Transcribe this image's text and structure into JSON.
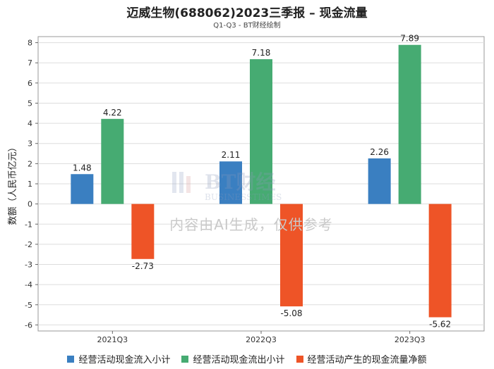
{
  "title": "迈威生物(688062)2023三季报 – 现金流量",
  "subtitle": "Q1-Q3 - BT财经绘制",
  "watermark": {
    "logo_text": "BT财经",
    "logo_subtext": "BUSINESSTIMES",
    "text": "内容由AI生成，仅供参考"
  },
  "chart_data": {
    "type": "bar",
    "title": "迈威生物(688062)2023三季报 – 现金流量",
    "subtitle": "Q1-Q3 - BT财经绘制",
    "xlabel": "",
    "ylabel": "数额（人民币亿元）",
    "categories": [
      "2021Q3",
      "2022Q3",
      "2023Q3"
    ],
    "series": [
      {
        "name": "经营活动现金流入小计",
        "color": "#3a7fc1",
        "values": [
          1.48,
          2.11,
          2.26
        ]
      },
      {
        "name": "经营活动现金流出小计",
        "color": "#46ab72",
        "values": [
          4.22,
          7.18,
          7.89
        ]
      },
      {
        "name": "经营活动产生的现金流量净额",
        "color": "#ee5427",
        "values": [
          -2.73,
          -5.08,
          -5.62
        ]
      }
    ],
    "ylim": [
      -6.3,
      8.3
    ],
    "yticks": [
      -6,
      -5,
      -4,
      -3,
      -2,
      -1,
      0,
      1,
      2,
      3,
      4,
      5,
      6,
      7,
      8
    ],
    "grid": true,
    "legend": "bottom"
  }
}
